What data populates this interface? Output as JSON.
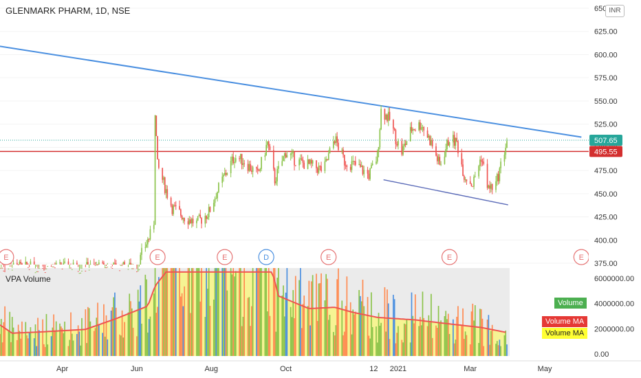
{
  "header": {
    "title": "GLENMARK PHARM, 1D, NSE",
    "currency": "INR"
  },
  "volume_pane": {
    "title": "VPA Volume"
  },
  "legend": {
    "volume": "Volume",
    "volume_ma_red": "Volume MA",
    "volume_ma_yellow": "Volume MA"
  },
  "colors": {
    "up": "#8bc34a",
    "down": "#ef5350",
    "trend": "#4a8fe0",
    "support": "#5b6bb8",
    "price_line": "#d32f2f",
    "last": "#26a69a",
    "vol_ma": "#ef5350",
    "vol_fill": "#f7f58a",
    "event": "#e57373",
    "dividend": "#4a8fe0"
  },
  "chart_data": {
    "type": "candlestick",
    "price_axis": {
      "ticks": [
        "650.00",
        "625.00",
        "600.00",
        "575.00",
        "550.00",
        "525.00",
        "500.00",
        "475.00",
        "450.00",
        "425.00",
        "400.00",
        "375.00"
      ],
      "range": [
        375,
        650
      ]
    },
    "volume_axis": {
      "ticks": [
        "6000000.00",
        "4000000.00",
        "2000000.00",
        "0.00"
      ],
      "range": [
        0,
        6000000
      ]
    },
    "time_axis": {
      "ticks": [
        "Apr",
        "Jun",
        "Aug",
        "Oct",
        "12",
        "2021",
        "Mar",
        "May"
      ]
    },
    "last_price_label": "507.65",
    "horizontal_level_label": "495.55",
    "horizontal_level": 495.55,
    "last_price": 507.65,
    "price_path": [
      {
        "t": "2020-06-02",
        "p": 370
      },
      {
        "t": "2020-06-05",
        "p": 385
      },
      {
        "t": "2020-06-10",
        "p": 400
      },
      {
        "t": "2020-06-12",
        "p": 405
      },
      {
        "t": "2020-06-15",
        "p": 420
      },
      {
        "t": "2020-06-16",
        "p": 540
      },
      {
        "t": "2020-06-18",
        "p": 480
      },
      {
        "t": "2020-06-22",
        "p": 465
      },
      {
        "t": "2020-06-30",
        "p": 435
      },
      {
        "t": "2020-07-10",
        "p": 425
      },
      {
        "t": "2020-07-20",
        "p": 418
      },
      {
        "t": "2020-07-30",
        "p": 430
      },
      {
        "t": "2020-08-05",
        "p": 450
      },
      {
        "t": "2020-08-12",
        "p": 470
      },
      {
        "t": "2020-08-20",
        "p": 490
      },
      {
        "t": "2020-08-28",
        "p": 485
      },
      {
        "t": "2020-09-08",
        "p": 470
      },
      {
        "t": "2020-09-16",
        "p": 505
      },
      {
        "t": "2020-09-22",
        "p": 465
      },
      {
        "t": "2020-10-01",
        "p": 495
      },
      {
        "t": "2020-10-10",
        "p": 485
      },
      {
        "t": "2020-10-22",
        "p": 480
      },
      {
        "t": "2020-11-01",
        "p": 475
      },
      {
        "t": "2020-11-10",
        "p": 510
      },
      {
        "t": "2020-11-18",
        "p": 485
      },
      {
        "t": "2020-11-28",
        "p": 480
      },
      {
        "t": "2020-12-08",
        "p": 470
      },
      {
        "t": "2020-12-15",
        "p": 490
      },
      {
        "t": "2020-12-18",
        "p": 540
      },
      {
        "t": "2020-12-25",
        "p": 530
      },
      {
        "t": "2020-12-30",
        "p": 510
      },
      {
        "t": "2021-01-04",
        "p": 495
      },
      {
        "t": "2021-01-12",
        "p": 520
      },
      {
        "t": "2021-01-20",
        "p": 525
      },
      {
        "t": "2021-01-28",
        "p": 505
      },
      {
        "t": "2021-02-04",
        "p": 480
      },
      {
        "t": "2021-02-12",
        "p": 510
      },
      {
        "t": "2021-02-18",
        "p": 505
      },
      {
        "t": "2021-02-24",
        "p": 470
      },
      {
        "t": "2021-03-03",
        "p": 460
      },
      {
        "t": "2021-03-10",
        "p": 490
      },
      {
        "t": "2021-03-16",
        "p": 455
      },
      {
        "t": "2021-03-22",
        "p": 460
      },
      {
        "t": "2021-03-26",
        "p": 480
      },
      {
        "t": "2021-03-31",
        "p": 507
      }
    ],
    "trendline_upper": [
      {
        "t": "2020-02-10",
        "p": 609
      },
      {
        "t": "2021-05-31",
        "p": 511
      }
    ],
    "trendline_lower": [
      {
        "t": "2020-12-20",
        "p": 465
      },
      {
        "t": "2021-04-01",
        "p": 438
      }
    ],
    "volume_ma_path": [
      {
        "t": "2020-02-10",
        "v": 2300000
      },
      {
        "t": "2020-02-20",
        "v": 1650000
      },
      {
        "t": "2020-03-15",
        "v": 1750000
      },
      {
        "t": "2020-04-20",
        "v": 1950000
      },
      {
        "t": "2020-05-15",
        "v": 2800000
      },
      {
        "t": "2020-06-10",
        "v": 3800000
      },
      {
        "t": "2020-06-16",
        "v": 5400000
      },
      {
        "t": "2020-06-25",
        "v": 6500000
      },
      {
        "t": "2020-09-20",
        "v": 6500000
      },
      {
        "t": "2020-09-25",
        "v": 4600000
      },
      {
        "t": "2020-10-20",
        "v": 3600000
      },
      {
        "t": "2020-11-10",
        "v": 3700000
      },
      {
        "t": "2020-11-25",
        "v": 3300000
      },
      {
        "t": "2020-12-15",
        "v": 2900000
      },
      {
        "t": "2021-01-15",
        "v": 2700000
      },
      {
        "t": "2021-02-15",
        "v": 2350000
      },
      {
        "t": "2021-03-10",
        "v": 2100000
      },
      {
        "t": "2021-03-31",
        "v": 1700000
      }
    ],
    "events": [
      {
        "t": "2020-02-15",
        "label": "E"
      },
      {
        "t": "2020-06-18",
        "label": "E"
      },
      {
        "t": "2020-08-12",
        "label": "E"
      },
      {
        "t": "2020-09-15",
        "label": "D"
      },
      {
        "t": "2020-11-05",
        "label": "E"
      },
      {
        "t": "2021-02-12",
        "label": "E"
      },
      {
        "t": "2021-05-31",
        "label": "E"
      }
    ]
  }
}
